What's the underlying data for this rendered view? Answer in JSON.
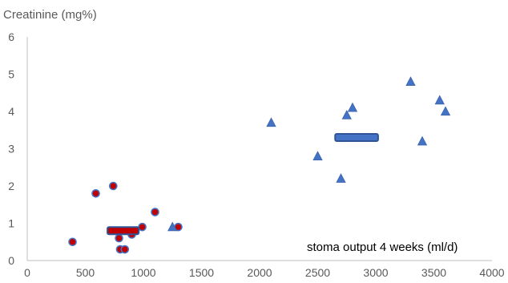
{
  "chart_data": {
    "type": "scatter",
    "title": "",
    "ylabel": "Creatinine (mg%)",
    "xlabel": "stoma output 4 weeks (ml/d)",
    "xlim": [
      0,
      4000
    ],
    "ylim": [
      0,
      6
    ],
    "x_ticks": [
      0,
      500,
      1000,
      1500,
      2000,
      2500,
      3000,
      3500,
      4000
    ],
    "y_ticks": [
      0,
      1,
      2,
      3,
      4,
      5,
      6
    ],
    "grid": false,
    "legend": "none",
    "series": [
      {
        "marker": "circle",
        "color": "#C00000",
        "edge_color": "#4472C4",
        "points": [
          {
            "x": 390,
            "y": 0.5
          },
          {
            "x": 590,
            "y": 1.8
          },
          {
            "x": 740,
            "y": 2.0
          },
          {
            "x": 790,
            "y": 0.6
          },
          {
            "x": 800,
            "y": 0.3
          },
          {
            "x": 840,
            "y": 0.3
          },
          {
            "x": 900,
            "y": 0.7
          },
          {
            "x": 990,
            "y": 0.9
          },
          {
            "x": 1100,
            "y": 1.3
          },
          {
            "x": 1300,
            "y": 0.9
          }
        ],
        "mean_bar": {
          "x_from": 690,
          "x_to": 960,
          "y": 0.8,
          "fill": "#C00000"
        }
      },
      {
        "marker": "triangle",
        "color": "#4472C4",
        "points": [
          {
            "x": 1250,
            "y": 0.9
          },
          {
            "x": 2100,
            "y": 3.7
          },
          {
            "x": 2500,
            "y": 2.8
          },
          {
            "x": 2700,
            "y": 2.2
          },
          {
            "x": 2750,
            "y": 3.9
          },
          {
            "x": 2800,
            "y": 4.1
          },
          {
            "x": 3300,
            "y": 4.8
          },
          {
            "x": 3400,
            "y": 3.2
          },
          {
            "x": 3550,
            "y": 4.3
          },
          {
            "x": 3600,
            "y": 4.0
          }
        ],
        "mean_bar": {
          "x_from": 2650,
          "x_to": 3020,
          "y": 3.3,
          "fill": "#4472C4"
        }
      }
    ]
  }
}
